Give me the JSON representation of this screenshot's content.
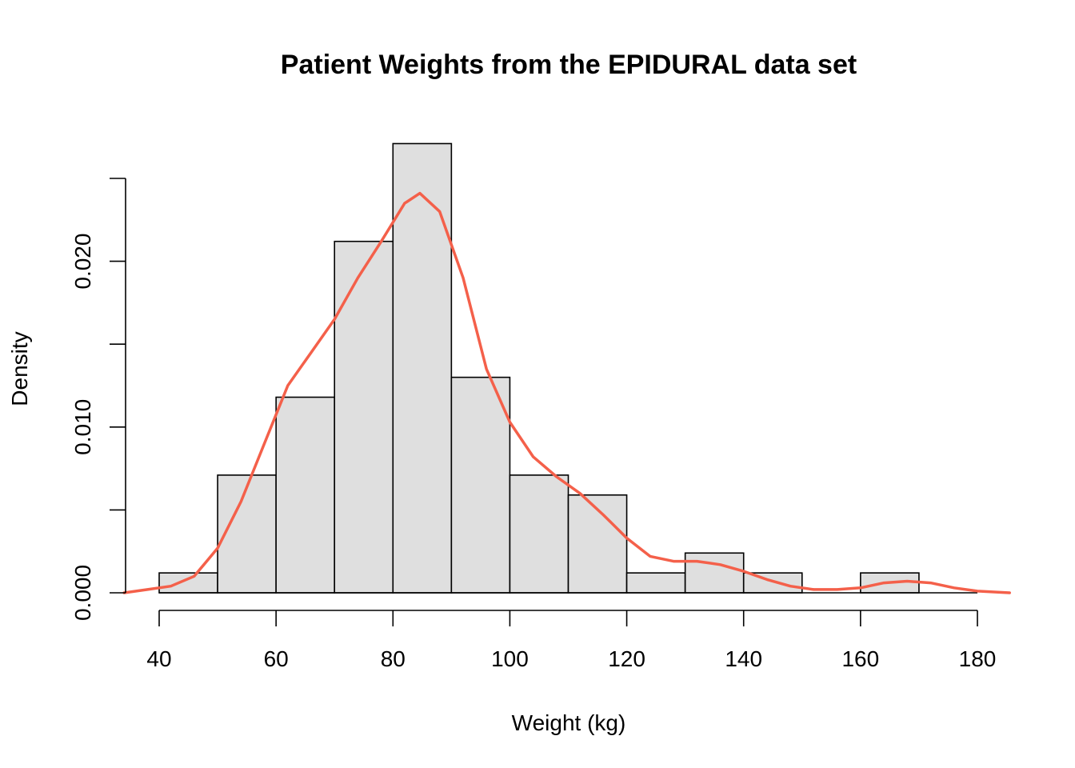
{
  "chart_data": {
    "type": "bar",
    "title": "Patient Weights from the EPIDURAL data set",
    "xlabel": "Weight (kg)",
    "ylabel": "Density",
    "xlim": [
      34,
      186
    ],
    "ylim": [
      0,
      0.027
    ],
    "x_ticks": [
      40,
      60,
      80,
      100,
      120,
      140,
      160,
      180
    ],
    "x_tick_labels": [
      "40",
      "60",
      "80",
      "100",
      "120",
      "140",
      "160",
      "180"
    ],
    "y_ticks": [
      0.0,
      0.005,
      0.01,
      0.015,
      0.02,
      0.025
    ],
    "y_tick_labels": [
      "0.000",
      "",
      "0.010",
      "",
      "0.020",
      ""
    ],
    "grid": false,
    "bins": [
      {
        "start": 40,
        "end": 50,
        "density": 0.0012
      },
      {
        "start": 50,
        "end": 60,
        "density": 0.0071
      },
      {
        "start": 60,
        "end": 70,
        "density": 0.0118
      },
      {
        "start": 70,
        "end": 80,
        "density": 0.0212
      },
      {
        "start": 80,
        "end": 90,
        "density": 0.0271
      },
      {
        "start": 90,
        "end": 100,
        "density": 0.013
      },
      {
        "start": 100,
        "end": 110,
        "density": 0.0071
      },
      {
        "start": 110,
        "end": 120,
        "density": 0.0059
      },
      {
        "start": 120,
        "end": 130,
        "density": 0.0012
      },
      {
        "start": 130,
        "end": 140,
        "density": 0.0024
      },
      {
        "start": 140,
        "end": 150,
        "density": 0.0012
      },
      {
        "start": 150,
        "end": 160,
        "density": 0.0
      },
      {
        "start": 160,
        "end": 170,
        "density": 0.0012
      },
      {
        "start": 170,
        "end": 180,
        "density": 0.0
      }
    ],
    "bar_color": "#dfdfdf",
    "density_curve": {
      "color": "#f4604a",
      "points": [
        [
          34,
          0.0
        ],
        [
          38,
          0.0002
        ],
        [
          42,
          0.0004
        ],
        [
          46,
          0.001
        ],
        [
          50,
          0.0027
        ],
        [
          54,
          0.0055
        ],
        [
          58,
          0.009
        ],
        [
          62,
          0.0125
        ],
        [
          66,
          0.0145
        ],
        [
          70,
          0.0165
        ],
        [
          74,
          0.019
        ],
        [
          78,
          0.0212
        ],
        [
          82,
          0.0235
        ],
        [
          84.6,
          0.0241
        ],
        [
          88,
          0.023
        ],
        [
          92,
          0.019
        ],
        [
          96,
          0.0135
        ],
        [
          100,
          0.0103
        ],
        [
          104,
          0.0082
        ],
        [
          108,
          0.007
        ],
        [
          112,
          0.006
        ],
        [
          116,
          0.0047
        ],
        [
          120,
          0.0033
        ],
        [
          124,
          0.0022
        ],
        [
          128,
          0.0019
        ],
        [
          132,
          0.0019
        ],
        [
          136,
          0.0017
        ],
        [
          140,
          0.0013
        ],
        [
          144,
          0.0008
        ],
        [
          148,
          0.0004
        ],
        [
          152,
          0.0002
        ],
        [
          156,
          0.0002
        ],
        [
          160,
          0.0003
        ],
        [
          164,
          0.0006
        ],
        [
          168,
          0.0007
        ],
        [
          172,
          0.0006
        ],
        [
          176,
          0.0003
        ],
        [
          180,
          0.0001
        ],
        [
          185.5,
          0.0
        ]
      ]
    }
  }
}
